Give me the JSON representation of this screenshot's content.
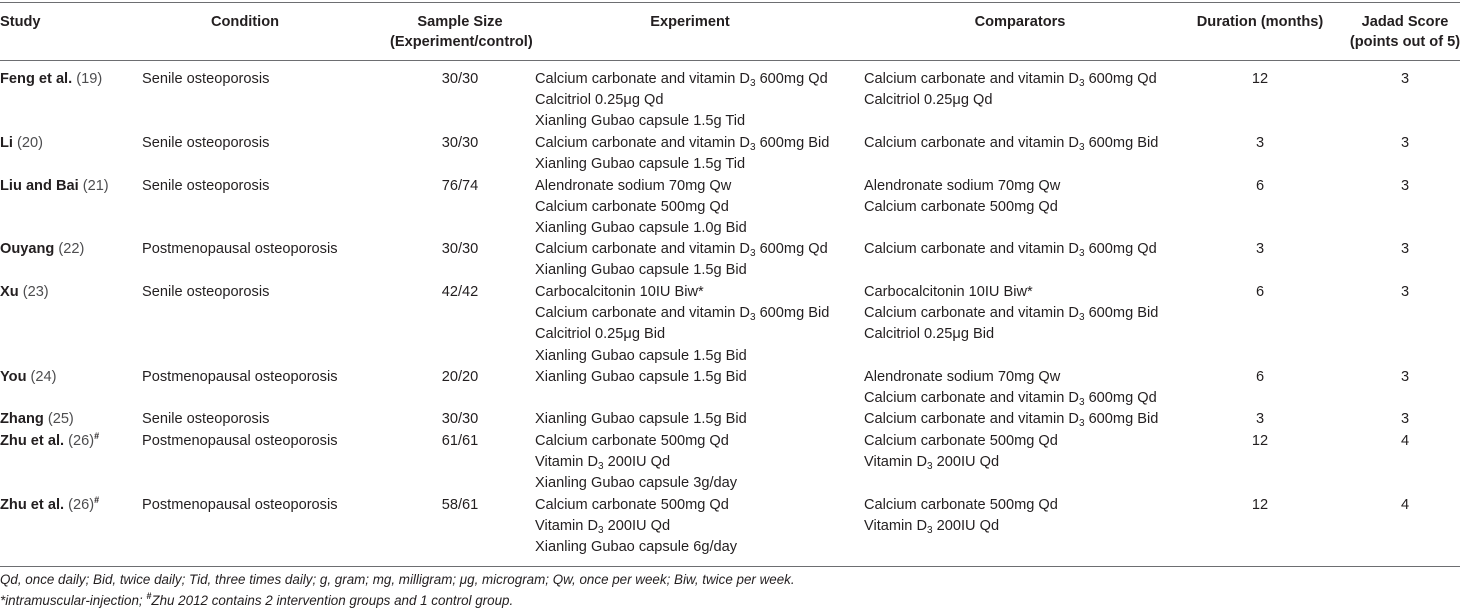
{
  "header": {
    "study": "Study",
    "condition": "Condition",
    "sample_size": [
      "Sample Size",
      "(Experiment/control)"
    ],
    "experiment": "Experiment",
    "comparators": "Comparators",
    "duration": "Duration (months)",
    "jadad": [
      "Jadad Score",
      "(points out of 5)"
    ]
  },
  "rows": [
    {
      "author": "Feng et al.",
      "ref": "(19)",
      "mark": "",
      "condition": "Senile osteoporosis",
      "sample": "30/30",
      "experiment": [
        [
          "Calcium carbonate and vitamin D",
          "3",
          " 600mg Qd"
        ],
        [
          "Calcitriol 0.25μg Qd"
        ],
        [
          "Xianling Gubao capsule 1.5g Tid"
        ]
      ],
      "comparators": [
        [
          "Calcium carbonate and vitamin D",
          "3",
          " 600mg Qd"
        ],
        [
          "Calcitriol 0.25μg Qd"
        ]
      ],
      "duration": "12",
      "jadad": "3"
    },
    {
      "author": "Li",
      "ref": "(20)",
      "mark": "",
      "condition": "Senile osteoporosis",
      "sample": "30/30",
      "experiment": [
        [
          "Calcium carbonate and vitamin D",
          "3",
          " 600mg Bid"
        ],
        [
          "Xianling Gubao capsule 1.5g Tid"
        ]
      ],
      "comparators": [
        [
          "Calcium carbonate and vitamin D",
          "3",
          " 600mg Bid"
        ]
      ],
      "duration": "3",
      "jadad": "3"
    },
    {
      "author": "Liu and Bai",
      "ref": "(21)",
      "mark": "",
      "condition": "Senile osteoporosis",
      "sample": "76/74",
      "experiment": [
        [
          "Alendronate sodium 70mg Qw"
        ],
        [
          "Calcium carbonate 500mg Qd"
        ],
        [
          "Xianling Gubao capsule 1.0g Bid"
        ]
      ],
      "comparators": [
        [
          "Alendronate sodium 70mg Qw"
        ],
        [
          "Calcium carbonate 500mg Qd"
        ]
      ],
      "duration": "6",
      "jadad": "3"
    },
    {
      "author": "Ouyang",
      "ref": "(22)",
      "mark": "",
      "condition": "Postmenopausal osteoporosis",
      "sample": "30/30",
      "experiment": [
        [
          "Calcium carbonate and vitamin D",
          "3",
          " 600mg Qd"
        ],
        [
          "Xianling Gubao capsule 1.5g Bid"
        ]
      ],
      "comparators": [
        [
          "Calcium carbonate and vitamin D",
          "3",
          " 600mg Qd"
        ]
      ],
      "duration": "3",
      "jadad": "3"
    },
    {
      "author": "Xu",
      "ref": "(23)",
      "mark": "",
      "condition": "Senile osteoporosis",
      "sample": "42/42",
      "experiment": [
        [
          "Carbocalcitonin 10IU Biw*"
        ],
        [
          "Calcium carbonate and vitamin D",
          "3",
          " 600mg Bid"
        ],
        [
          "Calcitriol 0.25μg Bid"
        ],
        [
          "Xianling Gubao capsule 1.5g Bid"
        ]
      ],
      "comparators": [
        [
          "Carbocalcitonin 10IU Biw*"
        ],
        [
          "Calcium carbonate and vitamin D",
          "3",
          " 600mg Bid"
        ],
        [
          "Calcitriol 0.25μg Bid"
        ]
      ],
      "duration": "6",
      "jadad": "3"
    },
    {
      "author": "You",
      "ref": "(24)",
      "mark": "",
      "condition": "Postmenopausal osteoporosis",
      "sample": "20/20",
      "experiment": [
        [
          "Xianling Gubao capsule 1.5g Bid"
        ]
      ],
      "comparators": [
        [
          "Alendronate sodium 70mg Qw"
        ],
        [
          "Calcium carbonate and vitamin D",
          "3",
          " 600mg Qd"
        ]
      ],
      "duration": "6",
      "jadad": "3"
    },
    {
      "author": "Zhang",
      "ref": "(25)",
      "mark": "",
      "condition": "Senile osteoporosis",
      "sample": "30/30",
      "experiment": [
        [
          "Xianling Gubao capsule 1.5g Bid"
        ]
      ],
      "comparators": [
        [
          "Calcium carbonate and vitamin D",
          "3",
          " 600mg Bid"
        ]
      ],
      "duration": "3",
      "jadad": "3"
    },
    {
      "author": "Zhu et al.",
      "ref": "(26)",
      "mark": "#",
      "condition": "Postmenopausal osteoporosis",
      "sample": "61/61",
      "experiment": [
        [
          "Calcium carbonate 500mg Qd"
        ],
        [
          "Vitamin D",
          "3",
          " 200IU Qd"
        ],
        [
          "Xianling Gubao capsule 3g/day"
        ]
      ],
      "comparators": [
        [
          "Calcium carbonate 500mg Qd"
        ],
        [
          "Vitamin D",
          "3",
          " 200IU Qd"
        ]
      ],
      "duration": "12",
      "jadad": "4"
    },
    {
      "author": "Zhu et al.",
      "ref": "(26)",
      "mark": "#",
      "condition": "Postmenopausal osteoporosis",
      "sample": "58/61",
      "experiment": [
        [
          "Calcium carbonate 500mg Qd"
        ],
        [
          "Vitamin D",
          "3",
          " 200IU Qd"
        ],
        [
          "Xianling Gubao capsule 6g/day"
        ]
      ],
      "comparators": [
        [
          "Calcium carbonate 500mg Qd"
        ],
        [
          "Vitamin D",
          "3",
          " 200IU Qd"
        ]
      ],
      "duration": "12",
      "jadad": "4"
    }
  ],
  "footnotes": {
    "abbreviations": "Qd, once daily; Bid, twice daily; Tid, three times daily; g, gram; mg, milligram; μg, microgram; Qw, once per week; Biw, twice per week.",
    "note2_a": "*intramuscular-injection; ",
    "note2_mark": "#",
    "note2_b": "Zhu 2012 contains 2 intervention groups and 1 control group."
  }
}
